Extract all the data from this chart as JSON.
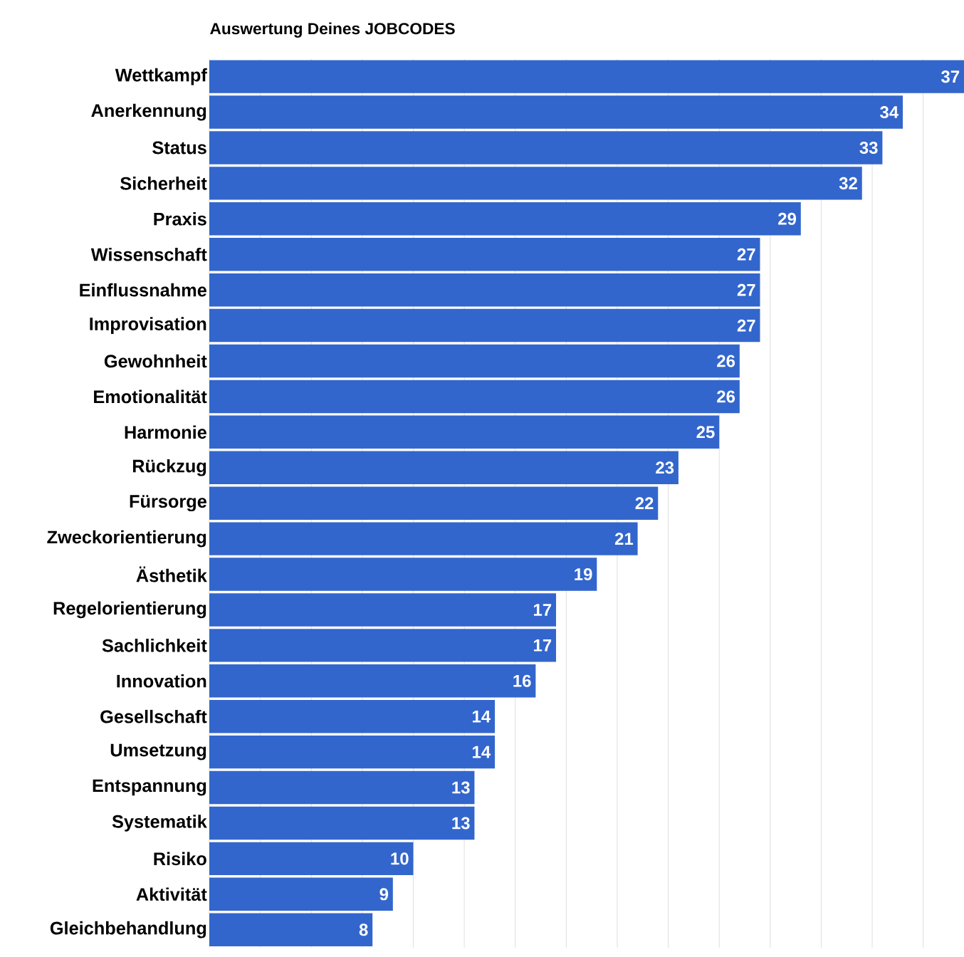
{
  "chart_data": {
    "type": "bar",
    "orientation": "horizontal",
    "title": "Auswertung Deines JOBCODES",
    "categories": [
      "Wettkampf",
      "Anerkennung",
      "Status",
      "Sicherheit",
      "Praxis",
      "Wissenschaft",
      "Einflussnahme",
      "Improvisation",
      "Gewohnheit",
      "Emotionalität",
      "Harmonie",
      "Rückzug",
      "Fürsorge",
      "Zweckorientierung",
      "Ästhetik",
      "Regelorientierung",
      "Sachlichkeit",
      "Innovation",
      "Gesellschaft",
      "Umsetzung",
      "Entspannung",
      "Systematik",
      "Risiko",
      "Aktivität",
      "Gleichbehandlung"
    ],
    "values": [
      37,
      34,
      33,
      32,
      29,
      27,
      27,
      27,
      26,
      26,
      25,
      23,
      22,
      21,
      19,
      17,
      17,
      16,
      14,
      14,
      13,
      13,
      10,
      9,
      8
    ],
    "color": "#3366cc",
    "data_labels": true,
    "grid": "x",
    "tick_labels": "y",
    "xlim": [
      0,
      37
    ],
    "xticks": [
      {
        "value": 0,
        "label": null
      },
      {
        "value": 2.5,
        "label": null
      },
      {
        "value": 5,
        "label": null
      },
      {
        "value": 7.5,
        "label": null
      },
      {
        "value": 10,
        "label": null
      },
      {
        "value": 12.5,
        "label": null
      },
      {
        "value": 15,
        "label": null
      },
      {
        "value": 17.5,
        "label": null
      },
      {
        "value": 20,
        "label": null
      },
      {
        "value": 22.5,
        "label": null
      },
      {
        "value": 25,
        "label": null
      },
      {
        "value": 27.5,
        "label": null
      },
      {
        "value": 30,
        "label": null
      },
      {
        "value": 32.5,
        "label": null
      },
      {
        "value": 35,
        "label": null
      }
    ]
  }
}
